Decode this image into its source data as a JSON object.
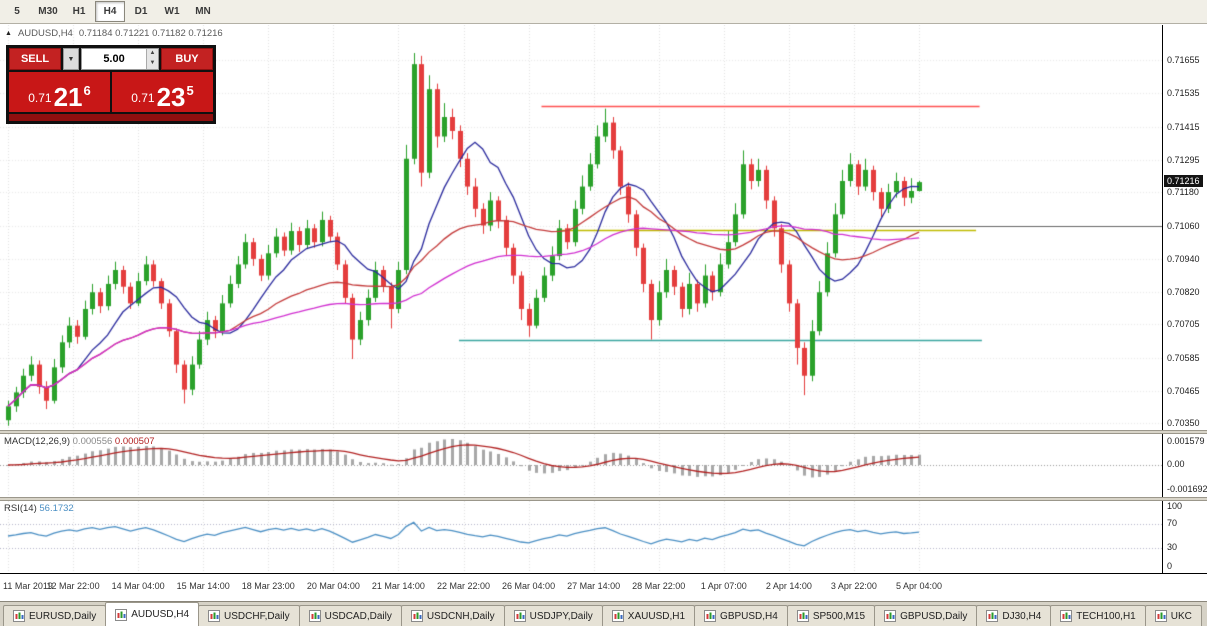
{
  "toolbar": {
    "timeframes": [
      "5",
      "M30",
      "H1",
      "H4",
      "D1",
      "W1",
      "MN"
    ],
    "active": "H4"
  },
  "chart": {
    "title_symbol": "AUDUSD,H4",
    "title_ohlc": "0.71184 0.71221 0.71182 0.71216",
    "collapse_icon": "▲",
    "current_price": "0.71216",
    "price_axis": [
      "0.71655",
      "0.71535",
      "0.71415",
      "0.71295",
      "0.71180",
      "0.71060",
      "0.70940",
      "0.70820",
      "0.70705",
      "0.70585",
      "0.70465",
      "0.70350"
    ],
    "time_axis": [
      "11 Mar 2019",
      "12 Mar 22:00",
      "14 Mar 04:00",
      "15 Mar 14:00",
      "18 Mar 23:00",
      "20 Mar 04:00",
      "21 Mar 14:00",
      "22 Mar 22:00",
      "26 Mar 04:00",
      "27 Mar 14:00",
      "28 Mar 22:00",
      "1 Apr 07:00",
      "2 Apr 14:00",
      "3 Apr 22:00",
      "5 Apr 04:00"
    ]
  },
  "trade": {
    "sell_label": "SELL",
    "buy_label": "BUY",
    "volume": "5.00",
    "bid": {
      "prefix": "0.71",
      "big": "21",
      "sup": "6"
    },
    "ask": {
      "prefix": "0.71",
      "big": "23",
      "sup": "5"
    }
  },
  "macd": {
    "label": "MACD(12,26,9)",
    "value_main": "0.000556",
    "value_signal": "0.000507",
    "axis": [
      "0.001579",
      "0.00",
      "-0.001692"
    ]
  },
  "rsi": {
    "label": "RSI(14)",
    "value": "56.1732",
    "axis": [
      100,
      70,
      30,
      0
    ],
    "levels": [
      70,
      30
    ]
  },
  "tabs": [
    {
      "label": "EURUSD,Daily"
    },
    {
      "label": "AUDUSD,H4",
      "active": true
    },
    {
      "label": "USDCHF,Daily"
    },
    {
      "label": "USDCAD,Daily"
    },
    {
      "label": "USDCNH,Daily"
    },
    {
      "label": "USDJPY,Daily"
    },
    {
      "label": "XAUUSD,H1"
    },
    {
      "label": "GBPUSD,H4"
    },
    {
      "label": "SP500,M15"
    },
    {
      "label": "GBPUSD,Daily"
    },
    {
      "label": "DJ30,H4"
    },
    {
      "label": "TECH100,H1"
    },
    {
      "label": "UKC"
    }
  ],
  "chart_data": {
    "type": "candlestick",
    "symbol": "AUDUSD",
    "timeframe": "H4",
    "candle_up_color": "#2aa12a",
    "candle_down_color": "#e43d3d",
    "moving_averages": [
      {
        "period": 10,
        "color": "#2b2b9e"
      },
      {
        "period": 30,
        "color": "#c43b3b"
      },
      {
        "period": 55,
        "color": "#d12fd1"
      }
    ],
    "horizontal_lines": [
      {
        "price": 0.7149,
        "x1": 0.466,
        "x2": 0.843,
        "color": "#ff5050",
        "width": 1.4
      },
      {
        "price": 0.71045,
        "x1": 0.479,
        "x2": 0.84,
        "color": "#c0ba00",
        "width": 1.6
      },
      {
        "price": 0.7065,
        "x1": 0.395,
        "x2": 0.845,
        "color": "#3aa6a0",
        "width": 1.4
      },
      {
        "price": 0.71058,
        "x1": 0.755,
        "x2": 1.0,
        "color": "#666666",
        "width": 1.2
      }
    ],
    "macd": {
      "fast": 12,
      "slow": 26,
      "signal": 9,
      "hist_color": "#a8a8a8",
      "signal_color": "#b22222"
    },
    "rsi": {
      "period": 14,
      "color": "#4a8fc4"
    },
    "ohlc": [
      [
        0.7036,
        0.7043,
        0.7034,
        0.7041
      ],
      [
        0.7041,
        0.7048,
        0.7039,
        0.7046
      ],
      [
        0.7046,
        0.70545,
        0.7044,
        0.7052
      ],
      [
        0.7052,
        0.7059,
        0.705,
        0.7056
      ],
      [
        0.7056,
        0.70575,
        0.70455,
        0.7048
      ],
      [
        0.7048,
        0.705,
        0.704,
        0.7043
      ],
      [
        0.7043,
        0.7058,
        0.7042,
        0.7055
      ],
      [
        0.7055,
        0.70665,
        0.7053,
        0.7064
      ],
      [
        0.7064,
        0.7073,
        0.7062,
        0.707
      ],
      [
        0.707,
        0.7072,
        0.70635,
        0.7066
      ],
      [
        0.7066,
        0.7079,
        0.7065,
        0.7076
      ],
      [
        0.7076,
        0.7085,
        0.7074,
        0.7082
      ],
      [
        0.7082,
        0.70835,
        0.70745,
        0.7077
      ],
      [
        0.7077,
        0.7088,
        0.70755,
        0.7085
      ],
      [
        0.7085,
        0.7093,
        0.7083,
        0.709
      ],
      [
        0.709,
        0.70915,
        0.70815,
        0.7084
      ],
      [
        0.7084,
        0.70855,
        0.7076,
        0.7078
      ],
      [
        0.7078,
        0.7089,
        0.7077,
        0.7086
      ],
      [
        0.7086,
        0.7095,
        0.70845,
        0.7092
      ],
      [
        0.7092,
        0.70935,
        0.7084,
        0.7086
      ],
      [
        0.7086,
        0.7087,
        0.7076,
        0.7078
      ],
      [
        0.7078,
        0.70795,
        0.7066,
        0.7068
      ],
      [
        0.7068,
        0.7069,
        0.7053,
        0.7056
      ],
      [
        0.7056,
        0.70575,
        0.7042,
        0.7047
      ],
      [
        0.7047,
        0.7059,
        0.7045,
        0.7056
      ],
      [
        0.7056,
        0.7068,
        0.70545,
        0.7065
      ],
      [
        0.7065,
        0.7075,
        0.7063,
        0.7072
      ],
      [
        0.7072,
        0.70735,
        0.70655,
        0.7068
      ],
      [
        0.7068,
        0.7081,
        0.70665,
        0.7078
      ],
      [
        0.7078,
        0.7088,
        0.70765,
        0.7085
      ],
      [
        0.7085,
        0.7095,
        0.70835,
        0.7092
      ],
      [
        0.7092,
        0.7103,
        0.70905,
        0.71
      ],
      [
        0.71,
        0.71015,
        0.70915,
        0.7094
      ],
      [
        0.7094,
        0.70955,
        0.7086,
        0.7088
      ],
      [
        0.7088,
        0.7099,
        0.70865,
        0.7096
      ],
      [
        0.7096,
        0.7105,
        0.70945,
        0.7102
      ],
      [
        0.7102,
        0.71035,
        0.7095,
        0.7097
      ],
      [
        0.7097,
        0.7107,
        0.70955,
        0.7104
      ],
      [
        0.7104,
        0.71055,
        0.70965,
        0.7099
      ],
      [
        0.7099,
        0.7108,
        0.70975,
        0.7105
      ],
      [
        0.7105,
        0.71065,
        0.7098,
        0.71
      ],
      [
        0.71,
        0.7111,
        0.70985,
        0.7108
      ],
      [
        0.7108,
        0.71095,
        0.71,
        0.7102
      ],
      [
        0.7102,
        0.71035,
        0.709,
        0.7092
      ],
      [
        0.7092,
        0.70935,
        0.7078,
        0.708
      ],
      [
        0.708,
        0.70815,
        0.7058,
        0.7065
      ],
      [
        0.7065,
        0.7075,
        0.7063,
        0.7072
      ],
      [
        0.7072,
        0.7083,
        0.707,
        0.708
      ],
      [
        0.708,
        0.7093,
        0.70785,
        0.709
      ],
      [
        0.709,
        0.70915,
        0.7082,
        0.7084
      ],
      [
        0.7084,
        0.70855,
        0.7069,
        0.7076
      ],
      [
        0.7076,
        0.7093,
        0.70745,
        0.709
      ],
      [
        0.709,
        0.7135,
        0.70885,
        0.713
      ],
      [
        0.713,
        0.7168,
        0.7128,
        0.7164
      ],
      [
        0.7164,
        0.7167,
        0.712,
        0.7125
      ],
      [
        0.7125,
        0.716,
        0.7123,
        0.7155
      ],
      [
        0.7155,
        0.7157,
        0.7134,
        0.7138
      ],
      [
        0.7138,
        0.715,
        0.7136,
        0.7145
      ],
      [
        0.7145,
        0.7148,
        0.7137,
        0.714
      ],
      [
        0.714,
        0.7142,
        0.7127,
        0.713
      ],
      [
        0.713,
        0.7132,
        0.7117,
        0.712
      ],
      [
        0.712,
        0.7123,
        0.7109,
        0.7112
      ],
      [
        0.7112,
        0.7114,
        0.7103,
        0.7106
      ],
      [
        0.7106,
        0.7118,
        0.7104,
        0.7115
      ],
      [
        0.7115,
        0.71165,
        0.7105,
        0.7108
      ],
      [
        0.7108,
        0.71095,
        0.7095,
        0.7098
      ],
      [
        0.7098,
        0.70995,
        0.7085,
        0.7088
      ],
      [
        0.7088,
        0.70895,
        0.7072,
        0.7076
      ],
      [
        0.7076,
        0.7078,
        0.7066,
        0.707
      ],
      [
        0.707,
        0.7083,
        0.7069,
        0.708
      ],
      [
        0.708,
        0.7091,
        0.70785,
        0.7088
      ],
      [
        0.7088,
        0.70985,
        0.7086,
        0.7095
      ],
      [
        0.7095,
        0.7108,
        0.70935,
        0.7105
      ],
      [
        0.7105,
        0.71065,
        0.70975,
        0.71
      ],
      [
        0.71,
        0.7115,
        0.70985,
        0.7112
      ],
      [
        0.7112,
        0.7124,
        0.711,
        0.712
      ],
      [
        0.712,
        0.7132,
        0.71185,
        0.7128
      ],
      [
        0.7128,
        0.7142,
        0.71265,
        0.7138
      ],
      [
        0.7138,
        0.7148,
        0.7136,
        0.7143
      ],
      [
        0.7143,
        0.7145,
        0.713,
        0.7133
      ],
      [
        0.7133,
        0.71345,
        0.7117,
        0.712
      ],
      [
        0.712,
        0.71215,
        0.7107,
        0.711
      ],
      [
        0.711,
        0.71115,
        0.7095,
        0.7098
      ],
      [
        0.7098,
        0.70995,
        0.7082,
        0.7085
      ],
      [
        0.7085,
        0.70865,
        0.7065,
        0.7072
      ],
      [
        0.7072,
        0.7086,
        0.707,
        0.7082
      ],
      [
        0.7082,
        0.7094,
        0.708,
        0.709
      ],
      [
        0.709,
        0.70915,
        0.7081,
        0.7084
      ],
      [
        0.7084,
        0.70855,
        0.7073,
        0.7076
      ],
      [
        0.7076,
        0.7089,
        0.7074,
        0.7085
      ],
      [
        0.7085,
        0.70865,
        0.7075,
        0.7078
      ],
      [
        0.7078,
        0.7092,
        0.70765,
        0.7088
      ],
      [
        0.7088,
        0.70895,
        0.7079,
        0.7082
      ],
      [
        0.7082,
        0.7096,
        0.70805,
        0.7092
      ],
      [
        0.7092,
        0.7104,
        0.70905,
        0.71
      ],
      [
        0.71,
        0.7114,
        0.70985,
        0.711
      ],
      [
        0.711,
        0.7133,
        0.71085,
        0.7128
      ],
      [
        0.7128,
        0.713,
        0.7119,
        0.7122
      ],
      [
        0.7122,
        0.713,
        0.712,
        0.7126
      ],
      [
        0.7126,
        0.71275,
        0.7112,
        0.7115
      ],
      [
        0.7115,
        0.71165,
        0.7102,
        0.7105
      ],
      [
        0.7105,
        0.71065,
        0.7089,
        0.7092
      ],
      [
        0.7092,
        0.70935,
        0.7075,
        0.7078
      ],
      [
        0.7078,
        0.70795,
        0.7056,
        0.7062
      ],
      [
        0.7062,
        0.7064,
        0.7045,
        0.7052
      ],
      [
        0.7052,
        0.7072,
        0.705,
        0.7068
      ],
      [
        0.7068,
        0.7086,
        0.70665,
        0.7082
      ],
      [
        0.7082,
        0.71,
        0.70805,
        0.7096
      ],
      [
        0.7096,
        0.7114,
        0.70945,
        0.711
      ],
      [
        0.711,
        0.7126,
        0.71085,
        0.7122
      ],
      [
        0.7122,
        0.7132,
        0.712,
        0.7128
      ],
      [
        0.7128,
        0.71295,
        0.7117,
        0.712
      ],
      [
        0.712,
        0.713,
        0.71185,
        0.7126
      ],
      [
        0.7126,
        0.71275,
        0.7115,
        0.7118
      ],
      [
        0.7118,
        0.71195,
        0.7109,
        0.7112
      ],
      [
        0.7112,
        0.7121,
        0.71105,
        0.7118
      ],
      [
        0.7118,
        0.7125,
        0.7116,
        0.7122
      ],
      [
        0.7122,
        0.71235,
        0.7113,
        0.7116
      ],
      [
        0.7116,
        0.7123,
        0.7114,
        0.71184
      ],
      [
        0.71184,
        0.71221,
        0.71182,
        0.71216
      ]
    ]
  }
}
